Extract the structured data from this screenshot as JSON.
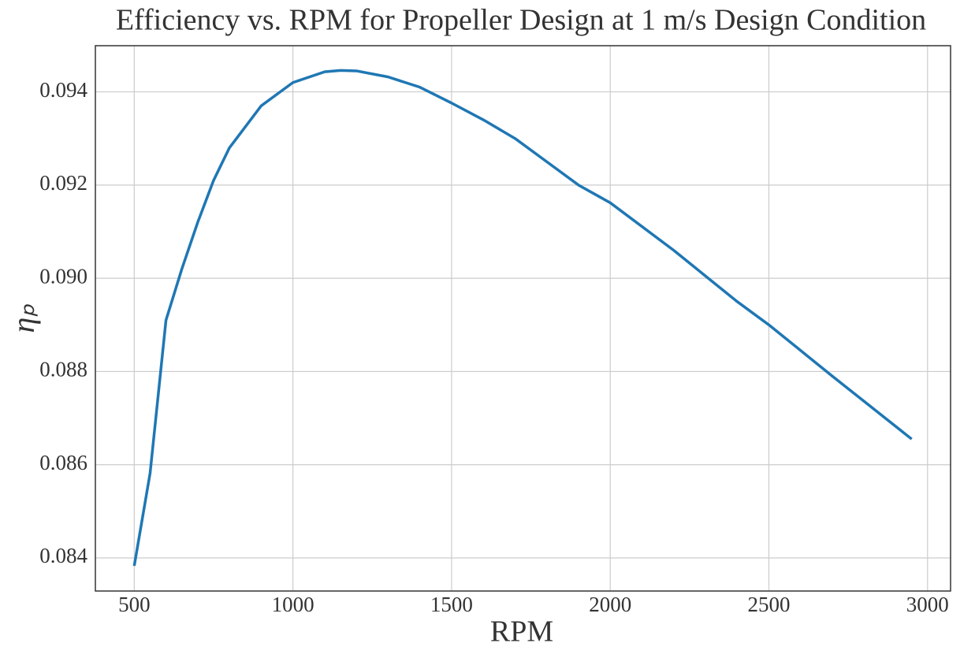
{
  "chart_data": {
    "type": "line",
    "title": "Efficiency vs. RPM for Propeller Design at 1 m/s Design Condition",
    "xlabel": "RPM",
    "ylabel": "ηₚ",
    "x": [
      500,
      550,
      600,
      650,
      700,
      750,
      800,
      900,
      1000,
      1100,
      1150,
      1200,
      1300,
      1400,
      1500,
      1600,
      1700,
      1800,
      1900,
      2000,
      2200,
      2400,
      2500,
      2700,
      2950
    ],
    "series": [
      {
        "color": "#1f77b4",
        "values": [
          0.08383,
          0.08582,
          0.0891,
          0.0902,
          0.0912,
          0.0921,
          0.0928,
          0.0937,
          0.0942,
          0.09443,
          0.09446,
          0.09445,
          0.09432,
          0.0941,
          0.09376,
          0.0934,
          0.093,
          0.0925,
          0.092,
          0.09162,
          0.0906,
          0.0895,
          0.089,
          0.0879,
          0.08655
        ]
      }
    ],
    "xlim": [
      377.5,
      3072.5
    ],
    "xticks": [
      500,
      1000,
      1500,
      2000,
      2500,
      3000
    ],
    "ylim": [
      0.08329,
      0.09499
    ],
    "yticks": [
      0.084,
      0.086,
      0.088,
      {
        "value": 0.09,
        "label": "0.090"
      },
      0.092,
      0.094
    ],
    "grid": true
  }
}
